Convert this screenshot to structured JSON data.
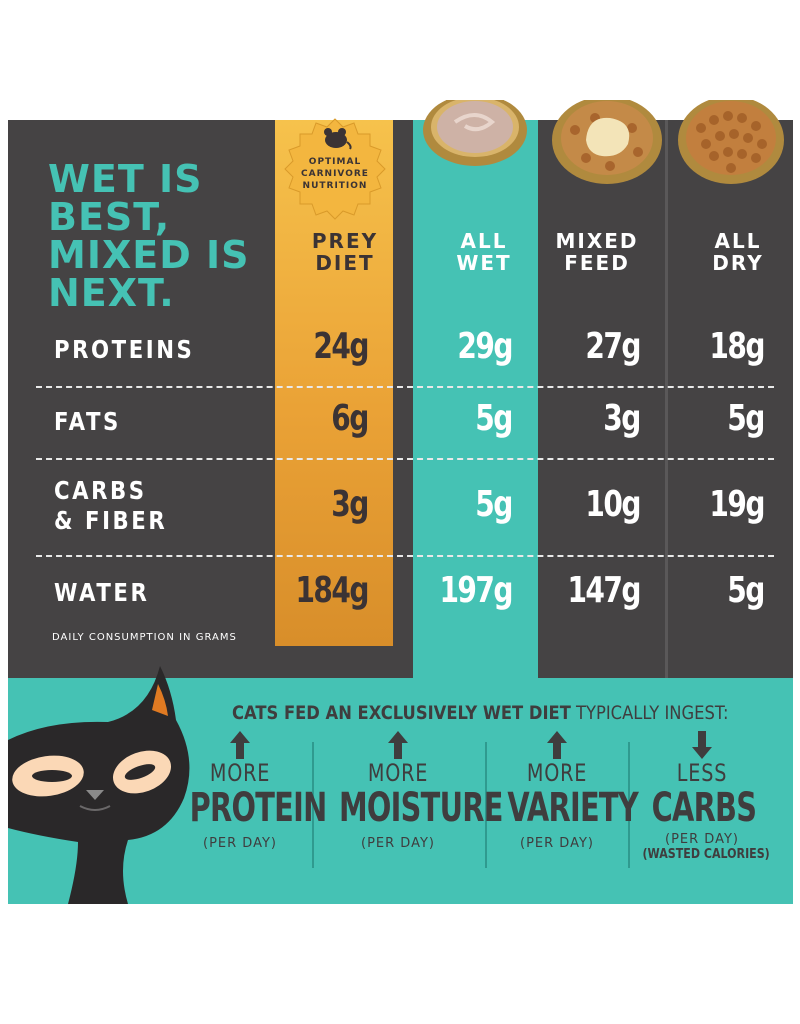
{
  "headline": [
    "WET IS",
    "BEST,",
    "MIXED IS",
    "NEXT."
  ],
  "badge": {
    "lines": [
      "OPTIMAL",
      "CARNIVORE",
      "NUTRITION"
    ],
    "icon": "mouse-icon"
  },
  "columns": [
    {
      "label": [
        "PREY",
        "DIET"
      ]
    },
    {
      "label": [
        "ALL",
        "WET"
      ]
    },
    {
      "label": [
        "MIXED",
        "FEED"
      ]
    },
    {
      "label": [
        "ALL",
        "DRY"
      ]
    }
  ],
  "rows": [
    {
      "label": [
        "PROTEINS"
      ],
      "values": [
        "24g",
        "29g",
        "27g",
        "18g"
      ]
    },
    {
      "label": [
        "FATS"
      ],
      "values": [
        "6g",
        "5g",
        "3g",
        "5g"
      ]
    },
    {
      "label": [
        "CARBS",
        "& FIBER"
      ],
      "values": [
        "3g",
        "5g",
        "10g",
        "19g"
      ]
    },
    {
      "label": [
        "WATER"
      ],
      "values": [
        "184g",
        "197g",
        "147g",
        "5g"
      ]
    }
  ],
  "footnote": "DAILY CONSUMPTION IN GRAMS",
  "banner": {
    "bold": "CATS FED AN EXCLUSIVELY WET DIET",
    "rest": " TYPICALLY INGEST:"
  },
  "benefits": [
    {
      "direction": "up",
      "small": "MORE",
      "big": "PROTEIN",
      "per": "(PER DAY)",
      "note": ""
    },
    {
      "direction": "up",
      "small": "MORE",
      "big": "MOISTURE",
      "per": "(PER DAY)",
      "note": ""
    },
    {
      "direction": "up",
      "small": "MORE",
      "big": "VARIETY",
      "per": "(PER DAY)",
      "note": ""
    },
    {
      "direction": "down",
      "small": "LESS",
      "big": "CARBS",
      "per": "(PER DAY)",
      "note": "(WASTED CALORIES)"
    }
  ],
  "colors": {
    "dark": "#454344",
    "teal": "#45c2b4",
    "headline": "#45c2b4",
    "gold": "#e9a435",
    "text_dark": "#3f3d3e"
  }
}
